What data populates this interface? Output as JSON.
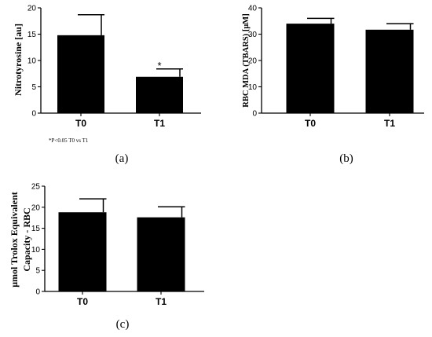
{
  "chart_data": [
    {
      "type": "bar",
      "panel_label": "(a)",
      "ylabel": "Nitrotyrosine [au]",
      "categories": [
        "T0",
        "T1"
      ],
      "values": [
        14.8,
        6.9
      ],
      "errors": [
        3.9,
        1.5
      ],
      "ylim": [
        0,
        20
      ],
      "yticks": [
        "0",
        "5",
        "10",
        "15",
        "20"
      ],
      "annotation": "*",
      "note": "*P<0.05   T0 vs T1"
    },
    {
      "type": "bar",
      "panel_label": "(b)",
      "ylabel": "RBC MDA (TBARS) [μM]",
      "categories": [
        "T0",
        "T1"
      ],
      "values": [
        34.0,
        31.7
      ],
      "errors": [
        2.0,
        2.3
      ],
      "ylim": [
        0,
        40
      ],
      "yticks": [
        "0",
        "10",
        "20",
        "30",
        "40"
      ]
    },
    {
      "type": "bar",
      "panel_label": "(c)",
      "ylabel_lines": [
        "μmol Trolox Equivalent",
        "Capacity - RBC"
      ],
      "categories": [
        "T0",
        "T1"
      ],
      "values": [
        18.8,
        17.6
      ],
      "errors": [
        3.2,
        2.5
      ],
      "ylim": [
        0,
        25
      ],
      "yticks": [
        "0",
        "5",
        "10",
        "15",
        "20",
        "25"
      ]
    }
  ]
}
